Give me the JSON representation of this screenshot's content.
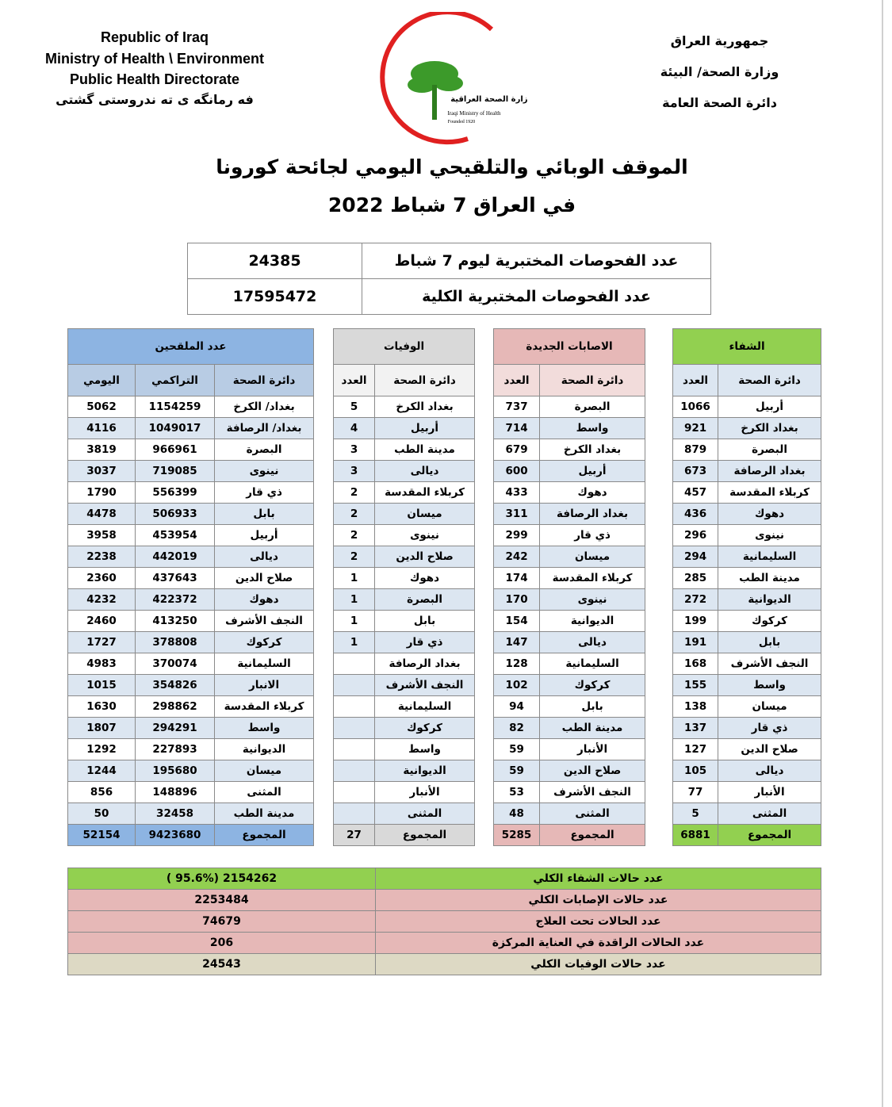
{
  "header": {
    "left_lines": [
      "Republic of Iraq",
      "Ministry of Health \\ Environment",
      "Public Health Directorate",
      "فه رمانگه ی ته ندروستی گشتی"
    ],
    "right_lines": [
      "جمهورية العراق",
      "وزارة الصحة/ البيئة",
      "دائرة الصحة العامة"
    ],
    "logo": [
      "وزارة الصحة العراقية",
      "Iraqi Ministry of Health",
      "Founded 1920"
    ]
  },
  "title": [
    "الموقف الوبائي والتلقيحي اليومي لجائحة كورونا",
    "في العراق  7  شباط 2022"
  ],
  "tests": [
    [
      "عدد الفحوصات المختبرية  ليوم  7  شباط",
      "24385"
    ],
    [
      "عدد الفحوصات المختبرية الكلية",
      "17595472"
    ]
  ],
  "main_table": {
    "sections": [
      {
        "title": "الشفاء",
        "columns": [
          "دائرة الصحة",
          "العدد"
        ],
        "rows": [
          [
            "أربيل",
            1066
          ],
          [
            "بغداد الكرخ",
            921
          ],
          [
            "البصرة",
            879
          ],
          [
            "بغداد الرصافة",
            673
          ],
          [
            "كربلاء المقدسة",
            457
          ],
          [
            "دهوك",
            436
          ],
          [
            "نينوى",
            296
          ],
          [
            "السليمانية",
            294
          ],
          [
            "مدينة الطب",
            285
          ],
          [
            "الديوانية",
            272
          ],
          [
            "كركوك",
            199
          ],
          [
            "بابل",
            191
          ],
          [
            "النجف الأشرف",
            168
          ],
          [
            "واسط",
            155
          ],
          [
            "ميسان",
            138
          ],
          [
            "ذي قار",
            137
          ],
          [
            "صلاح الدين",
            127
          ],
          [
            "ديالى",
            105
          ],
          [
            "الأنبار",
            77
          ],
          [
            "المثنى",
            5
          ]
        ],
        "total": [
          "المجموع",
          6881
        ]
      },
      {
        "title": "الاصابات الجديدة",
        "columns": [
          "دائرة الصحة",
          "العدد"
        ],
        "rows": [
          [
            "البصرة",
            737
          ],
          [
            "واسط",
            714
          ],
          [
            "بغداد الكرخ",
            679
          ],
          [
            "أربيل",
            600
          ],
          [
            "دهوك",
            433
          ],
          [
            "بغداد الرصافة",
            311
          ],
          [
            "ذي قار",
            299
          ],
          [
            "ميسان",
            242
          ],
          [
            "كربلاء المقدسة",
            174
          ],
          [
            "نينوى",
            170
          ],
          [
            "الديوانية",
            154
          ],
          [
            "ديالى",
            147
          ],
          [
            "السليمانية",
            128
          ],
          [
            "كركوك",
            102
          ],
          [
            "بابل",
            94
          ],
          [
            "مدينة الطب",
            82
          ],
          [
            "الأنبار",
            59
          ],
          [
            "صلاح الدين",
            59
          ],
          [
            "النجف الأشرف",
            53
          ],
          [
            "المثنى",
            48
          ]
        ],
        "total": [
          "المجموع",
          5285
        ]
      },
      {
        "title": "الوفيات",
        "columns": [
          "دائرة الصحة",
          "العدد"
        ],
        "rows": [
          [
            "بغداد الكرخ",
            5
          ],
          [
            "أربيل",
            4
          ],
          [
            "مدينة الطب",
            3
          ],
          [
            "ديالى",
            3
          ],
          [
            "كربلاء المقدسة",
            2
          ],
          [
            "ميسان",
            2
          ],
          [
            "نينوى",
            2
          ],
          [
            "صلاح الدين",
            2
          ],
          [
            "دهوك",
            1
          ],
          [
            "البصرة",
            1
          ],
          [
            "بابل",
            1
          ],
          [
            "ذي قار",
            1
          ],
          [
            "بغداد الرصافة",
            null
          ],
          [
            "النجف الأشرف",
            null
          ],
          [
            "السليمانية",
            null
          ],
          [
            "كركوك",
            null
          ],
          [
            "واسط",
            null
          ],
          [
            "الديوانية",
            null
          ],
          [
            "الأنبار",
            null
          ],
          [
            "المثنى",
            null
          ]
        ],
        "total": [
          "المجموع",
          27
        ]
      },
      {
        "title": "عدد الملقحين",
        "columns": [
          "دائرة الصحة",
          "التراكمي",
          "اليومي"
        ],
        "rows": [
          [
            "بغداد/ الكرخ",
            1154259,
            5062
          ],
          [
            "بغداد/ الرصافة",
            1049017,
            4116
          ],
          [
            "البصرة",
            966961,
            3819
          ],
          [
            "نينوى",
            719085,
            3037
          ],
          [
            "ذي قار",
            556399,
            1790
          ],
          [
            "بابل",
            506933,
            4478
          ],
          [
            "أربيل",
            453954,
            3958
          ],
          [
            "ديالى",
            442019,
            2238
          ],
          [
            "صلاح الدين",
            437643,
            2360
          ],
          [
            "دهوك",
            422372,
            4232
          ],
          [
            "النجف الأشرف",
            413250,
            2460
          ],
          [
            "كركوك",
            378808,
            1727
          ],
          [
            "السليمانية",
            370074,
            4983
          ],
          [
            "الانبار",
            354826,
            1015
          ],
          [
            "كربلاء المقدسة",
            298862,
            1630
          ],
          [
            "واسط",
            294291,
            1807
          ],
          [
            "الديوانية",
            227893,
            1292
          ],
          [
            "ميسان",
            195680,
            1244
          ],
          [
            "المثنى",
            148896,
            856
          ],
          [
            "مدينة الطب",
            32458,
            50
          ]
        ],
        "total": [
          "المجموع",
          9423680,
          52154
        ]
      }
    ]
  },
  "summary": [
    [
      "عدد حالات الشفاء الكلي",
      "( 95.6%)  2154262"
    ],
    [
      "عدد حالات الإصابات الكلي",
      "2253484"
    ],
    [
      "عدد الحالات تحت العلاج",
      "74679"
    ],
    [
      "عدد الحالات الراقدة في العناية المركزة",
      "206"
    ],
    [
      "عدد حالات الوفيات الكلي",
      "24543"
    ]
  ]
}
